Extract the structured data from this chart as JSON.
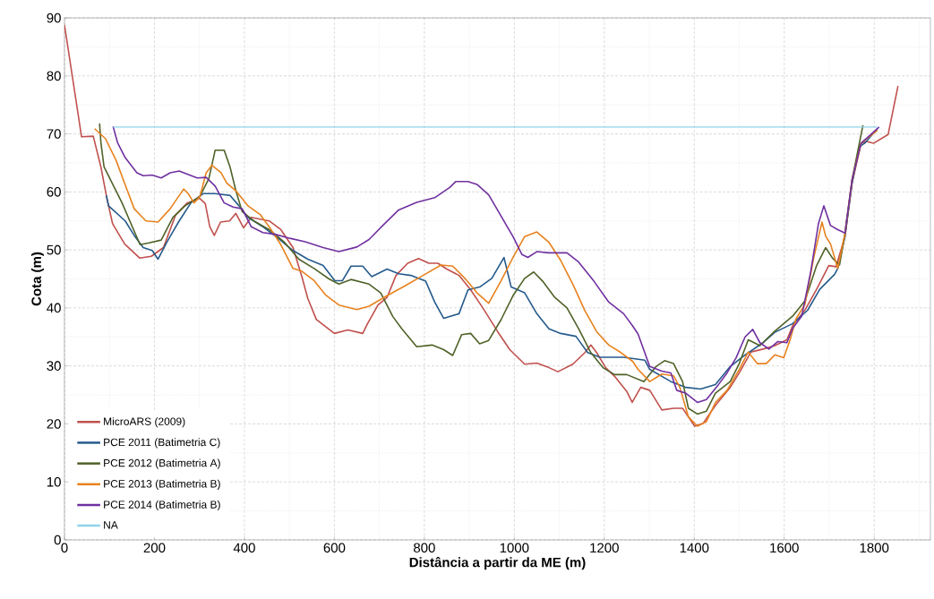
{
  "chart_data": {
    "type": "line",
    "xlabel": "Distância a partir da ME (m)",
    "ylabel": "Cota (m)",
    "xlim": [
      0,
      1925
    ],
    "ylim": [
      0,
      90
    ],
    "xticks": [
      0,
      200,
      400,
      600,
      800,
      1000,
      1200,
      1400,
      1600,
      1800
    ],
    "yticks": [
      0,
      10,
      20,
      30,
      40,
      50,
      60,
      70,
      80,
      90
    ],
    "grid": true,
    "legend": "bottom left",
    "marker": "none",
    "line_style": "solid",
    "series": [
      {
        "name": "MicroARS (2009)",
        "color": "#c0504d",
        "x": [
          0,
          38,
          64,
          81,
          94,
          107,
          134,
          167,
          193,
          220,
          247,
          273,
          300,
          313,
          323,
          333,
          347,
          367,
          381,
          398,
          415,
          455,
          481,
          508,
          528,
          541,
          560,
          600,
          630,
          663,
          673,
          697,
          717,
          737,
          763,
          787,
          810,
          830,
          850,
          877,
          903,
          930,
          963,
          990,
          1023,
          1050,
          1077,
          1097,
          1130,
          1157,
          1170,
          1183,
          1203,
          1223,
          1250,
          1262,
          1281,
          1301,
          1328,
          1354,
          1374,
          1401,
          1420,
          1447,
          1480,
          1500,
          1526,
          1553,
          1579,
          1606,
          1619,
          1646,
          1672,
          1699,
          1715,
          1735,
          1751,
          1771,
          1783,
          1799,
          1831,
          1853
        ],
        "values": [
          88.8,
          69.5,
          69.6,
          64.3,
          59,
          54.5,
          51,
          48.6,
          48.9,
          50.4,
          56,
          58.1,
          58.9,
          58,
          54,
          52.5,
          54.8,
          55,
          56.3,
          53.8,
          55.6,
          55,
          53.5,
          50.4,
          45.3,
          41.6,
          38,
          35.6,
          36.2,
          35.6,
          37.2,
          40.5,
          41.8,
          45.6,
          47.7,
          48.5,
          47.7,
          47.7,
          46.7,
          45.6,
          43.1,
          40,
          35.9,
          32.8,
          30.3,
          30.5,
          29.7,
          29,
          30.3,
          32.3,
          33.6,
          32.3,
          29.7,
          28.2,
          25.6,
          23.7,
          26.3,
          25.8,
          22.4,
          22.7,
          22.7,
          19.6,
          20.1,
          23.2,
          26.3,
          28.8,
          32.4,
          32.9,
          33.5,
          34.5,
          37,
          39.6,
          43.2,
          47.3,
          47.1,
          52.3,
          61.6,
          68.4,
          68.7,
          68.4,
          69.9,
          78.3
        ]
      },
      {
        "name": "PCE 2011 (Batimetria C)",
        "color": "#245a8c",
        "x": [
          93,
          98,
          135,
          155,
          175,
          195,
          208,
          228,
          255,
          281,
          308,
          335,
          368,
          388,
          408,
          441,
          475,
          508,
          541,
          575,
          601,
          618,
          637,
          663,
          683,
          717,
          743,
          770,
          803,
          823,
          843,
          877,
          897,
          923,
          950,
          977,
          993,
          1023,
          1050,
          1077,
          1103,
          1137,
          1163,
          1190,
          1243,
          1290,
          1301,
          1348,
          1381,
          1414,
          1447,
          1480,
          1513,
          1553,
          1579,
          1619,
          1652,
          1679,
          1712,
          1719,
          1735,
          1751,
          1767,
          1779,
          1807
        ],
        "values": [
          59.4,
          57.6,
          55,
          52.5,
          50.4,
          49.9,
          48.4,
          51.4,
          55,
          58.1,
          59.7,
          59.7,
          59.4,
          57.6,
          55.6,
          54,
          52,
          49.9,
          48.4,
          47.3,
          44.7,
          44.7,
          47.2,
          47.2,
          45.4,
          46.7,
          45.9,
          45.6,
          44.6,
          41,
          38.2,
          39,
          43.1,
          43.6,
          45.1,
          48.7,
          43.6,
          42.6,
          39,
          36.4,
          35.6,
          35.1,
          32.3,
          31.5,
          31.5,
          31,
          29.4,
          27.3,
          26.3,
          26,
          26.8,
          29.9,
          31.9,
          34,
          35.8,
          37.3,
          39.6,
          43.2,
          45.8,
          46.8,
          52.3,
          61.6,
          67.8,
          68.4,
          70.9
        ]
      },
      {
        "name": "PCE 2012 (Batimetria A)",
        "color": "#4f6228",
        "x": [
          78,
          81,
          88,
          108,
          128,
          148,
          168,
          188,
          215,
          241,
          268,
          301,
          321,
          335,
          355,
          368,
          381,
          395,
          421,
          455,
          488,
          521,
          555,
          588,
          610,
          637,
          677,
          703,
          730,
          750,
          783,
          817,
          843,
          863,
          883,
          903,
          923,
          943,
          970,
          997,
          1023,
          1043,
          1063,
          1090,
          1117,
          1143,
          1170,
          1197,
          1223,
          1250,
          1288,
          1315,
          1334,
          1354,
          1374,
          1387,
          1407,
          1427,
          1447,
          1480,
          1500,
          1520,
          1546,
          1579,
          1619,
          1646,
          1672,
          1692,
          1707,
          1723,
          1735,
          1751,
          1767,
          1775
        ],
        "values": [
          71.8,
          68.5,
          64.3,
          61.2,
          58.1,
          54.5,
          50.9,
          51.2,
          51.7,
          55.6,
          57.6,
          59.2,
          62.3,
          67.2,
          67.2,
          64.3,
          60.2,
          56.6,
          55,
          53.5,
          51.4,
          48.4,
          46.8,
          45,
          44.1,
          44.9,
          44.1,
          42.6,
          38.5,
          36.4,
          33.3,
          33.6,
          32.8,
          31.8,
          35.4,
          35.6,
          33.8,
          34.4,
          37.9,
          42.1,
          45.1,
          46.2,
          44.6,
          41.8,
          40,
          36.4,
          32.3,
          29.7,
          28.5,
          28.5,
          27.3,
          29.9,
          30.9,
          30.4,
          27.3,
          22.7,
          21.7,
          22.2,
          25.3,
          27.3,
          30.4,
          34.5,
          33.5,
          36,
          38.6,
          41.2,
          47.3,
          50.4,
          48.6,
          47.4,
          52.8,
          62.2,
          68.4,
          71.5
        ]
      },
      {
        "name": "PCE 2013 (Batimetria B)",
        "color": "#e8821e",
        "x": [
          67,
          91,
          115,
          135,
          155,
          181,
          208,
          235,
          265,
          275,
          288,
          301,
          315,
          328,
          348,
          361,
          381,
          408,
          435,
          455,
          481,
          508,
          528,
          555,
          581,
          610,
          650,
          677,
          717,
          757,
          797,
          837,
          863,
          890,
          917,
          943,
          970,
          997,
          1023,
          1050,
          1077,
          1103,
          1130,
          1157,
          1183,
          1210,
          1237,
          1263,
          1275,
          1301,
          1328,
          1354,
          1368,
          1387,
          1407,
          1427,
          1447,
          1473,
          1500,
          1520,
          1540,
          1560,
          1579,
          1599,
          1613,
          1626,
          1646,
          1666,
          1684,
          1692,
          1703,
          1719,
          1735,
          1751,
          1771,
          1807
        ],
        "values": [
          70.9,
          69.2,
          65.4,
          61.2,
          57.1,
          55,
          54.8,
          57.1,
          60.5,
          59.7,
          58.1,
          59.2,
          63.3,
          64.6,
          63.3,
          61.5,
          60.2,
          57.6,
          56.1,
          54,
          50.9,
          46.8,
          46.3,
          44.7,
          42.2,
          40.5,
          39.7,
          40.3,
          42.1,
          43.8,
          45.6,
          47.4,
          47.2,
          45.1,
          42.6,
          40.8,
          44.6,
          48.7,
          52.3,
          53.1,
          51.3,
          48.2,
          44.1,
          39.5,
          35.9,
          33.6,
          32.3,
          30.8,
          29.4,
          27.3,
          28.6,
          28.3,
          26.3,
          21.2,
          19.6,
          20.4,
          23.7,
          25.8,
          29.4,
          32.4,
          30.4,
          30.4,
          31.9,
          31.4,
          34.5,
          38.1,
          40.6,
          48.8,
          54.8,
          52.4,
          51,
          46.8,
          52.8,
          62.2,
          68.4,
          70.6
        ]
      },
      {
        "name": "PCE 2014 (Batimetria B)",
        "color": "#7030a0",
        "x": [
          108,
          118,
          135,
          161,
          175,
          195,
          215,
          235,
          255,
          275,
          295,
          315,
          335,
          355,
          375,
          395,
          415,
          441,
          468,
          501,
          535,
          575,
          610,
          650,
          677,
          710,
          743,
          783,
          823,
          857,
          870,
          897,
          917,
          943,
          970,
          997,
          1017,
          1030,
          1050,
          1077,
          1117,
          1143,
          1177,
          1210,
          1243,
          1263,
          1275,
          1301,
          1328,
          1348,
          1361,
          1381,
          1407,
          1427,
          1454,
          1473,
          1493,
          1513,
          1530,
          1546,
          1566,
          1586,
          1606,
          1619,
          1639,
          1659,
          1676,
          1688,
          1703,
          1719,
          1735,
          1751,
          1771,
          1811
        ],
        "values": [
          71.3,
          68.5,
          65.9,
          63.3,
          62.8,
          62.9,
          62.4,
          63.3,
          63.6,
          63,
          62.4,
          62.5,
          61,
          58.1,
          57.4,
          57.1,
          54,
          53,
          52.7,
          52,
          51.4,
          50.4,
          49.7,
          50.5,
          51.8,
          54.4,
          56.9,
          58.2,
          59,
          60.8,
          61.8,
          61.8,
          61.3,
          59.5,
          55.9,
          52.3,
          49.2,
          48.7,
          49.7,
          49.5,
          49.5,
          47.9,
          44.6,
          41,
          39,
          36.9,
          35.5,
          29.9,
          29.1,
          28.8,
          25.8,
          25.3,
          23.7,
          24.2,
          26.8,
          28.8,
          31.4,
          35,
          36.3,
          34,
          32.9,
          34.2,
          34,
          36.5,
          38.6,
          46.3,
          54.5,
          57.6,
          54.2,
          53.5,
          52.9,
          62.2,
          68.4,
          71.2
        ]
      },
      {
        "name": "NA",
        "color": "#8fd3e8",
        "x": [
          108,
          1807
        ],
        "values": [
          71.2,
          71.2
        ]
      }
    ]
  }
}
